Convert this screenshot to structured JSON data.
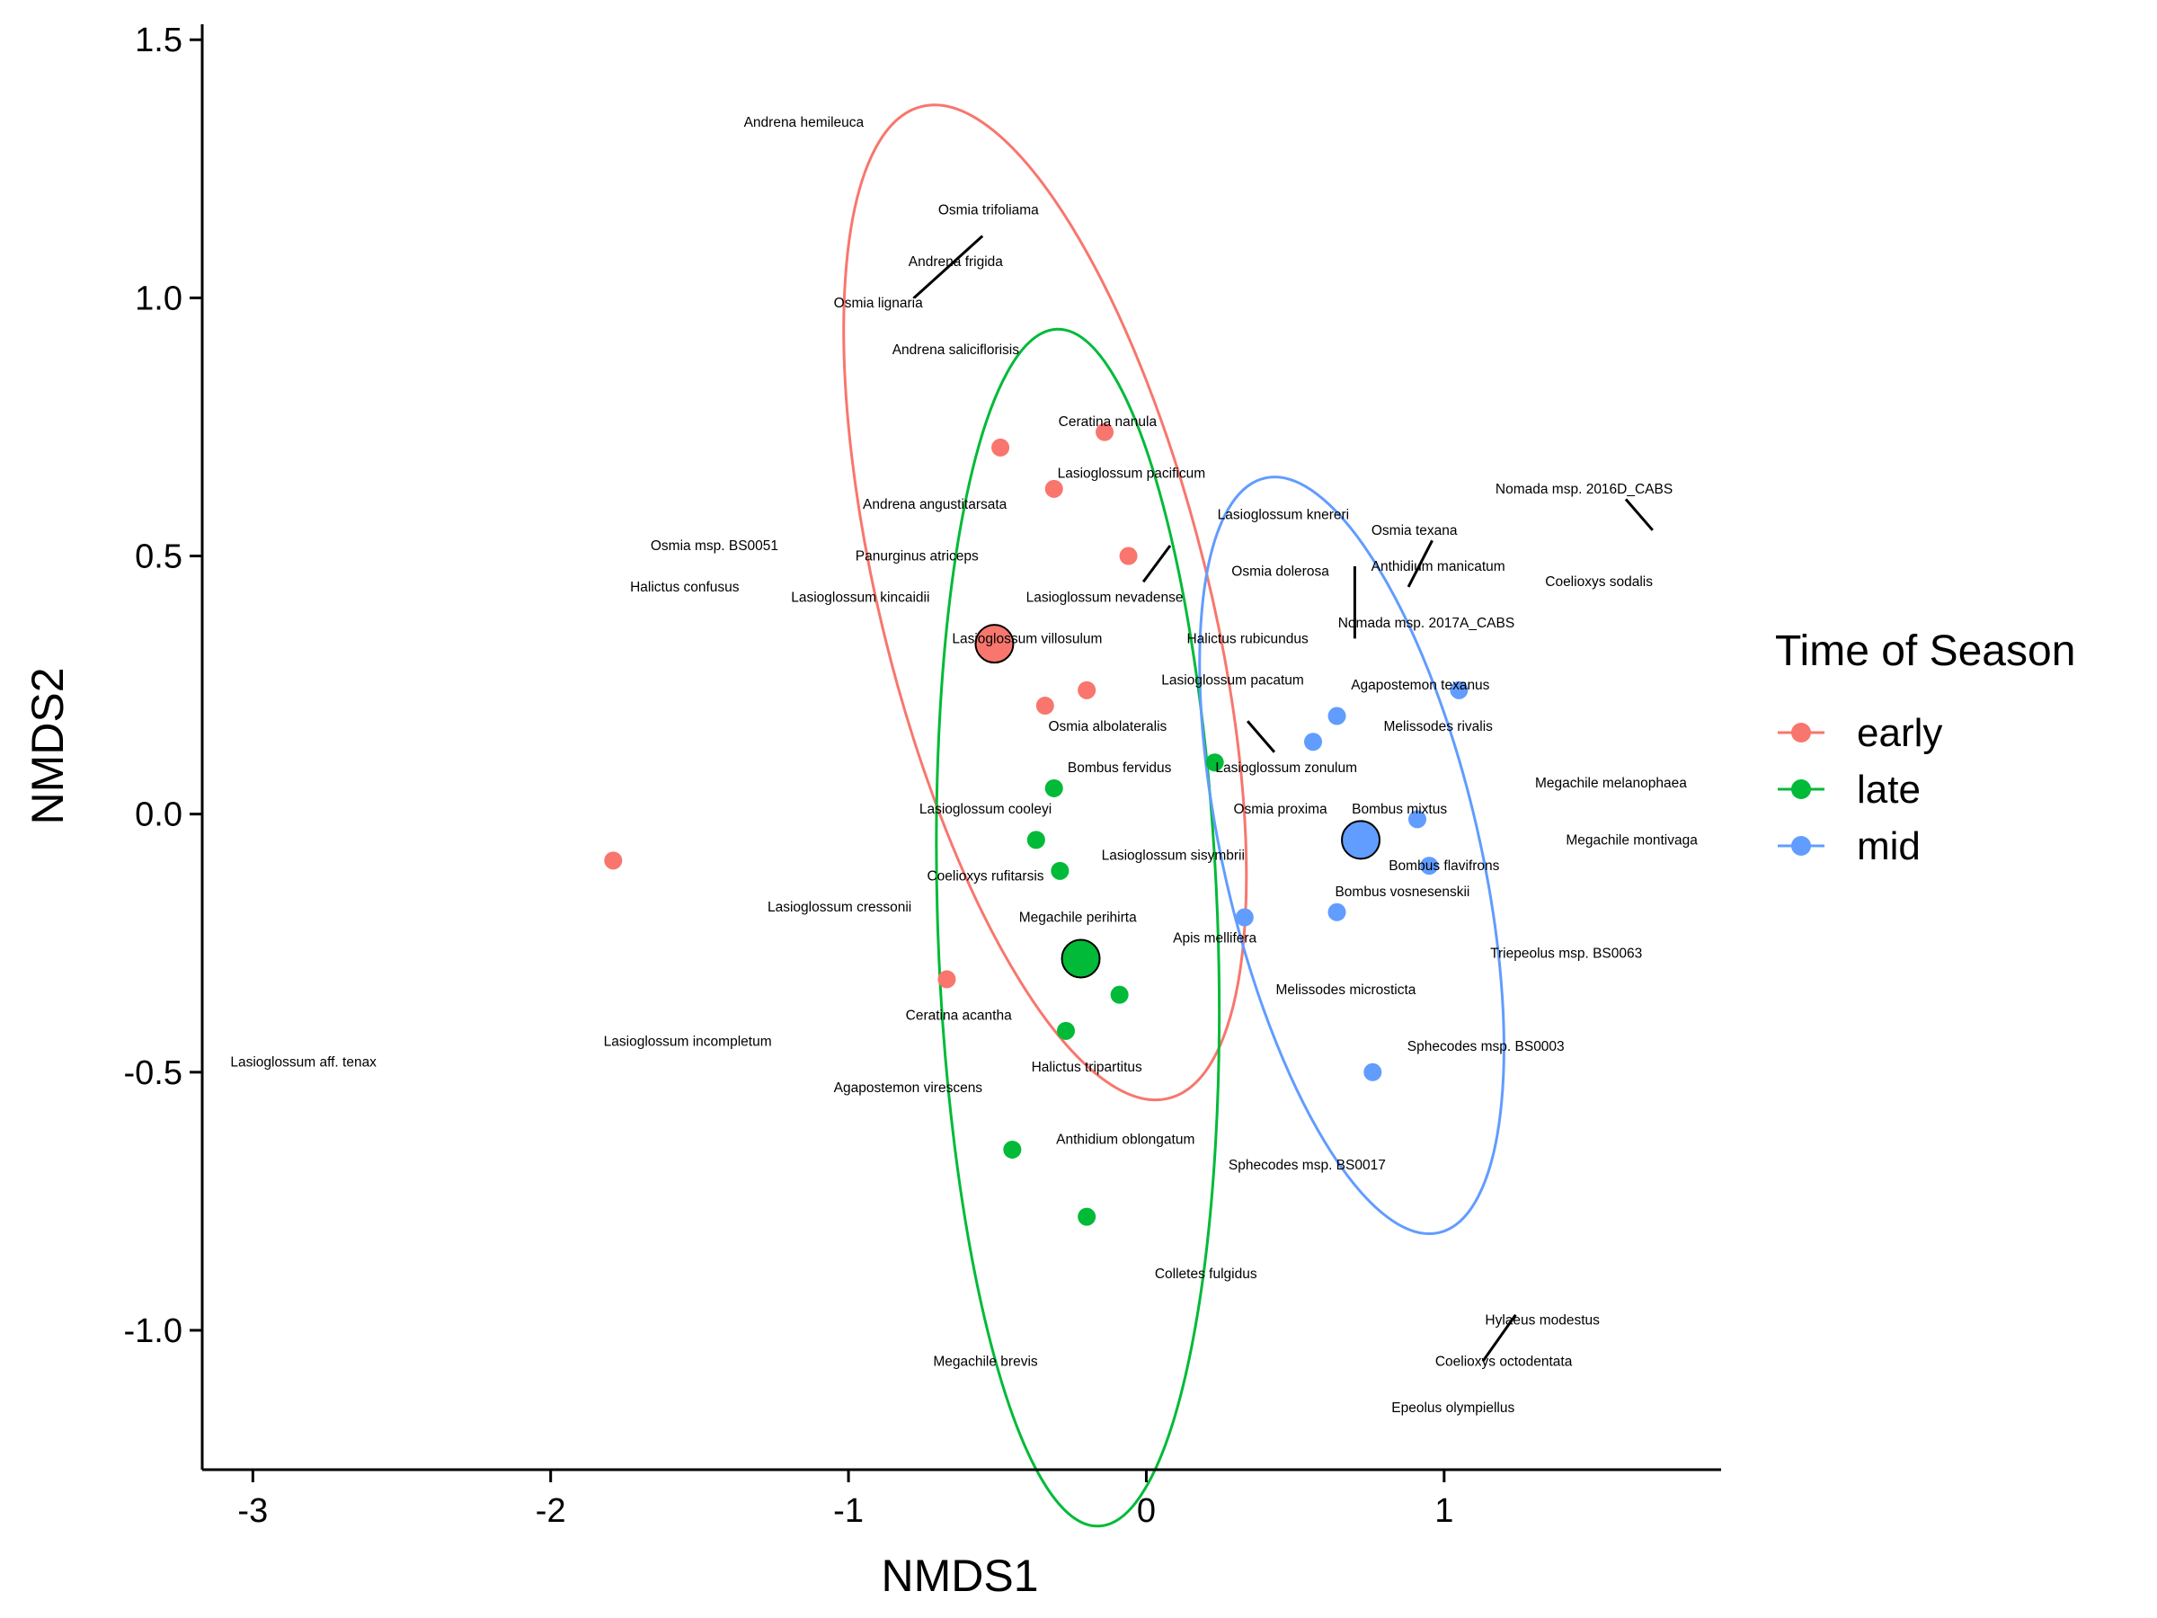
{
  "chart_data": {
    "type": "scatter",
    "xlabel": "NMDS1",
    "ylabel": "NMDS2",
    "xlim": [
      -3.17,
      1.93
    ],
    "ylim": [
      -1.27,
      1.53
    ],
    "x_ticks": [
      -3,
      -2,
      -1,
      0,
      1
    ],
    "x_tick_labels": [
      "-3",
      "-2",
      "-1",
      "0",
      "1"
    ],
    "y_ticks": [
      -1.0,
      -0.5,
      0.0,
      0.5,
      1.0,
      1.5
    ],
    "y_tick_labels": [
      "-1.0",
      "-0.5",
      "0.0",
      "0.5",
      "1.0",
      "1.5"
    ],
    "grid": false,
    "legend": {
      "title": "Time of Season",
      "position": "right",
      "entries": [
        "early",
        "late",
        "mid"
      ]
    },
    "colors": {
      "early": "#F8766D",
      "late": "#00BA38",
      "mid": "#619CFF"
    },
    "series": [
      {
        "name": "early",
        "points": [
          [
            -0.49,
            0.71
          ],
          [
            -0.14,
            0.74
          ],
          [
            -0.31,
            0.63
          ],
          [
            -0.06,
            0.5
          ],
          [
            -0.2,
            0.24
          ],
          [
            -0.34,
            0.21
          ],
          [
            -1.79,
            -0.09
          ],
          [
            -0.67,
            -0.32
          ]
        ],
        "centroid": [
          -0.51,
          0.33
        ],
        "ellipse": {
          "cx": -0.34,
          "cy": 0.41,
          "rx": 0.55,
          "ry": 0.99,
          "rotation_deg": 14
        }
      },
      {
        "name": "late",
        "points": [
          [
            -0.31,
            0.05
          ],
          [
            0.23,
            0.1
          ],
          [
            -0.37,
            -0.05
          ],
          [
            -0.29,
            -0.11
          ],
          [
            -0.09,
            -0.35
          ],
          [
            -0.27,
            -0.42
          ],
          [
            -0.45,
            -0.65
          ],
          [
            -0.2,
            -0.78
          ]
        ],
        "centroid": [
          -0.22,
          -0.28
        ],
        "ellipse": {
          "cx": -0.23,
          "cy": -0.22,
          "rx": 0.47,
          "ry": 1.16,
          "rotation_deg": 2
        }
      },
      {
        "name": "mid",
        "points": [
          [
            1.05,
            0.24
          ],
          [
            0.64,
            0.19
          ],
          [
            0.56,
            0.14
          ],
          [
            0.91,
            -0.01
          ],
          [
            0.95,
            -0.1
          ],
          [
            0.33,
            -0.2
          ],
          [
            0.64,
            -0.19
          ],
          [
            0.76,
            -0.5
          ]
        ],
        "centroid": [
          0.72,
          -0.05
        ],
        "ellipse": {
          "cx": 0.69,
          "cy": -0.08,
          "rx": 0.43,
          "ry": 0.75,
          "rotation_deg": 13
        }
      }
    ],
    "species": [
      {
        "label": "Andrena hemileuca",
        "x": -1.15,
        "y": 1.34
      },
      {
        "label": "Osmia trifoliama",
        "x": -0.53,
        "y": 1.17
      },
      {
        "label": "Andrena frigida",
        "x": -0.64,
        "y": 1.07
      },
      {
        "label": "Osmia lignaria",
        "x": -0.9,
        "y": 0.99
      },
      {
        "label": "Andrena saliciflorisis",
        "x": -0.64,
        "y": 0.9
      },
      {
        "label": "Ceratina nanula",
        "x": -0.13,
        "y": 0.76
      },
      {
        "label": "Lasioglossum pacificum",
        "x": -0.05,
        "y": 0.66
      },
      {
        "label": "Andrena angustitarsata",
        "x": -0.71,
        "y": 0.6
      },
      {
        "label": "Lasioglossum knereri",
        "x": 0.46,
        "y": 0.58
      },
      {
        "label": "Nomada msp. 2016D_CABS",
        "x": 1.47,
        "y": 0.63
      },
      {
        "label": "Osmia texana",
        "x": 0.9,
        "y": 0.55
      },
      {
        "label": "Osmia msp. BS0051",
        "x": -1.45,
        "y": 0.52
      },
      {
        "label": "Panurginus atriceps",
        "x": -0.77,
        "y": 0.5
      },
      {
        "label": "Anthidium manicatum",
        "x": 0.98,
        "y": 0.48
      },
      {
        "label": "Osmia dolerosa",
        "x": 0.45,
        "y": 0.47
      },
      {
        "label": "Coelioxys sodalis",
        "x": 1.52,
        "y": 0.45
      },
      {
        "label": "Halictus confusus",
        "x": -1.55,
        "y": 0.44
      },
      {
        "label": "Lasioglossum kincaidii",
        "x": -0.96,
        "y": 0.42
      },
      {
        "label": "Lasioglossum nevadense",
        "x": -0.14,
        "y": 0.42
      },
      {
        "label": "Nomada msp. 2017A_CABS",
        "x": 0.94,
        "y": 0.37
      },
      {
        "label": "Lasioglossum villosulum",
        "x": -0.4,
        "y": 0.34
      },
      {
        "label": "Halictus rubicundus",
        "x": 0.34,
        "y": 0.34
      },
      {
        "label": "Lasioglossum pacatum",
        "x": 0.29,
        "y": 0.26
      },
      {
        "label": "Agapostemon texanus",
        "x": 0.92,
        "y": 0.25
      },
      {
        "label": "Osmia albolateralis",
        "x": -0.13,
        "y": 0.17
      },
      {
        "label": "Melissodes rivalis",
        "x": 0.98,
        "y": 0.17
      },
      {
        "label": "Bombus fervidus",
        "x": -0.09,
        "y": 0.09
      },
      {
        "label": "Lasioglossum zonulum",
        "x": 0.47,
        "y": 0.09
      },
      {
        "label": "Megachile melanophaea",
        "x": 1.56,
        "y": 0.06
      },
      {
        "label": "Lasioglossum cooleyi",
        "x": -0.54,
        "y": 0.01
      },
      {
        "label": "Osmia proxima",
        "x": 0.45,
        "y": 0.01
      },
      {
        "label": "Bombus mixtus",
        "x": 0.85,
        "y": 0.01
      },
      {
        "label": "Megachile montivaga",
        "x": 1.63,
        "y": -0.05
      },
      {
        "label": "Lasioglossum sisymbrii",
        "x": 0.09,
        "y": -0.08
      },
      {
        "label": "Bombus flavifrons",
        "x": 1.0,
        "y": -0.1
      },
      {
        "label": "Coelioxys rufitarsis",
        "x": -0.54,
        "y": -0.12
      },
      {
        "label": "Bombus vosnesenskii",
        "x": 0.86,
        "y": -0.15
      },
      {
        "label": "Lasioglossum cressonii",
        "x": -1.03,
        "y": -0.18
      },
      {
        "label": "Megachile perihirta",
        "x": -0.23,
        "y": -0.2
      },
      {
        "label": "Apis mellifera",
        "x": 0.23,
        "y": -0.24
      },
      {
        "label": "Triepeolus msp. BS0063",
        "x": 1.41,
        "y": -0.27
      },
      {
        "label": "Melissodes microsticta",
        "x": 0.67,
        "y": -0.34
      },
      {
        "label": "Ceratina acantha",
        "x": -0.63,
        "y": -0.39
      },
      {
        "label": "Lasioglossum incompletum",
        "x": -1.54,
        "y": -0.44
      },
      {
        "label": "Sphecodes msp. BS0003",
        "x": 1.14,
        "y": -0.45
      },
      {
        "label": "Lasioglossum aff. tenax",
        "x": -2.83,
        "y": -0.48
      },
      {
        "label": "Halictus tripartitus",
        "x": -0.2,
        "y": -0.49
      },
      {
        "label": "Agapostemon virescens",
        "x": -0.8,
        "y": -0.53
      },
      {
        "label": "Anthidium oblongatum",
        "x": -0.07,
        "y": -0.63
      },
      {
        "label": "Sphecodes msp. BS0017",
        "x": 0.54,
        "y": -0.68
      },
      {
        "label": "Colletes fulgidus",
        "x": 0.2,
        "y": -0.89
      },
      {
        "label": "Hylaeus modestus",
        "x": 1.33,
        "y": -0.98
      },
      {
        "label": "Coelioxys octodentata",
        "x": 1.2,
        "y": -1.06
      },
      {
        "label": "Megachile brevis",
        "x": -0.54,
        "y": -1.06
      },
      {
        "label": "Epeolus olympiellus",
        "x": 1.03,
        "y": -1.15
      }
    ],
    "leader_segments": [
      [
        [
          -0.78,
          1.0
        ],
        [
          -0.55,
          1.12
        ]
      ],
      [
        [
          0.08,
          0.52
        ],
        [
          -0.01,
          0.45
        ]
      ],
      [
        [
          1.7,
          0.55
        ],
        [
          1.61,
          0.61
        ]
      ],
      [
        [
          0.88,
          0.44
        ],
        [
          0.96,
          0.53
        ]
      ],
      [
        [
          0.7,
          0.48
        ],
        [
          0.7,
          0.34
        ]
      ],
      [
        [
          0.34,
          0.18
        ],
        [
          0.43,
          0.12
        ]
      ],
      [
        [
          1.13,
          -1.06
        ],
        [
          1.24,
          -0.97
        ]
      ]
    ]
  }
}
